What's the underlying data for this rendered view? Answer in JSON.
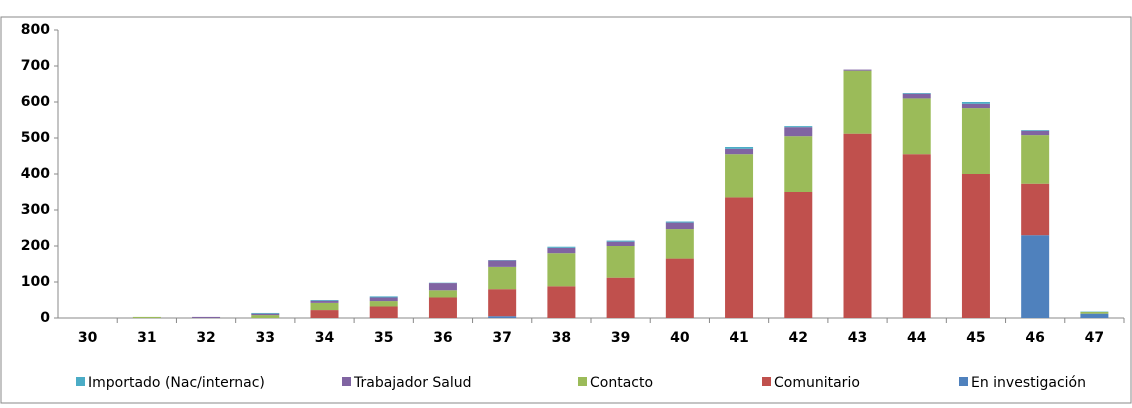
{
  "chart_data": {
    "type": "bar",
    "stacked": true,
    "categories": [
      "30",
      "31",
      "32",
      "33",
      "34",
      "35",
      "36",
      "37",
      "38",
      "39",
      "40",
      "41",
      "42",
      "43",
      "44",
      "45",
      "46",
      "47"
    ],
    "series": [
      {
        "name": "Importado (Nac/internac)",
        "color": "#4bacc6",
        "values": [
          0,
          0,
          0,
          2,
          2,
          3,
          1,
          1,
          3,
          3,
          3,
          5,
          3,
          0,
          2,
          5,
          2,
          1
        ]
      },
      {
        "name": "Trabajador Salud",
        "color": "#8064a2",
        "values": [
          0,
          0,
          3,
          4,
          6,
          10,
          20,
          18,
          15,
          12,
          18,
          15,
          25,
          3,
          13,
          12,
          12,
          0
        ]
      },
      {
        "name": "Contacto",
        "color": "#9bbb59",
        "values": [
          0,
          3,
          0,
          8,
          20,
          15,
          20,
          62,
          92,
          88,
          82,
          120,
          155,
          175,
          155,
          183,
          135,
          5
        ]
      },
      {
        "name": "Comunitario",
        "color": "#c0504d",
        "values": [
          0,
          0,
          0,
          0,
          22,
          32,
          57,
          75,
          88,
          112,
          165,
          335,
          350,
          512,
          455,
          400,
          143,
          0
        ]
      },
      {
        "name": "En investigación",
        "color": "#4f81bd",
        "values": [
          0,
          0,
          0,
          0,
          0,
          0,
          0,
          5,
          0,
          0,
          0,
          0,
          0,
          0,
          0,
          0,
          230,
          12
        ]
      }
    ],
    "ylim": [
      0,
      800
    ],
    "yticks": [
      0,
      100,
      200,
      300,
      400,
      500,
      600,
      700,
      800
    ],
    "grid": false,
    "legend": "bottom"
  }
}
